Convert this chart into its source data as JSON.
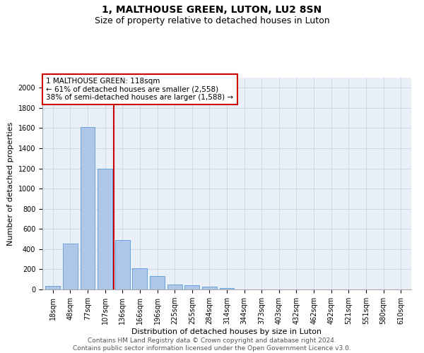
{
  "title": "1, MALTHOUSE GREEN, LUTON, LU2 8SN",
  "subtitle": "Size of property relative to detached houses in Luton",
  "xlabel": "Distribution of detached houses by size in Luton",
  "ylabel": "Number of detached properties",
  "categories": [
    "18sqm",
    "48sqm",
    "77sqm",
    "107sqm",
    "136sqm",
    "166sqm",
    "196sqm",
    "225sqm",
    "255sqm",
    "284sqm",
    "314sqm",
    "344sqm",
    "373sqm",
    "403sqm",
    "432sqm",
    "462sqm",
    "492sqm",
    "521sqm",
    "551sqm",
    "580sqm",
    "610sqm"
  ],
  "values": [
    35,
    455,
    1610,
    1200,
    490,
    210,
    130,
    50,
    40,
    25,
    15,
    0,
    0,
    0,
    0,
    0,
    0,
    0,
    0,
    0,
    0
  ],
  "bar_color": "#aec6e8",
  "bar_edge_color": "#5b9bd5",
  "vline_x": 3.5,
  "vline_color": "#cc0000",
  "annotation_text": "1 MALTHOUSE GREEN: 118sqm\n← 61% of detached houses are smaller (2,558)\n38% of semi-detached houses are larger (1,588) →",
  "annotation_box_color": "#ffffff",
  "annotation_box_edge_color": "#cc0000",
  "ylim": [
    0,
    2100
  ],
  "yticks": [
    0,
    200,
    400,
    600,
    800,
    1000,
    1200,
    1400,
    1600,
    1800,
    2000
  ],
  "grid_color": "#d0d8e8",
  "background_color": "#eaf0f8",
  "footer_line1": "Contains HM Land Registry data © Crown copyright and database right 2024.",
  "footer_line2": "Contains public sector information licensed under the Open Government Licence v3.0.",
  "title_fontsize": 10,
  "subtitle_fontsize": 9,
  "axis_label_fontsize": 8,
  "tick_fontsize": 7,
  "annotation_fontsize": 7.5,
  "footer_fontsize": 6.5
}
